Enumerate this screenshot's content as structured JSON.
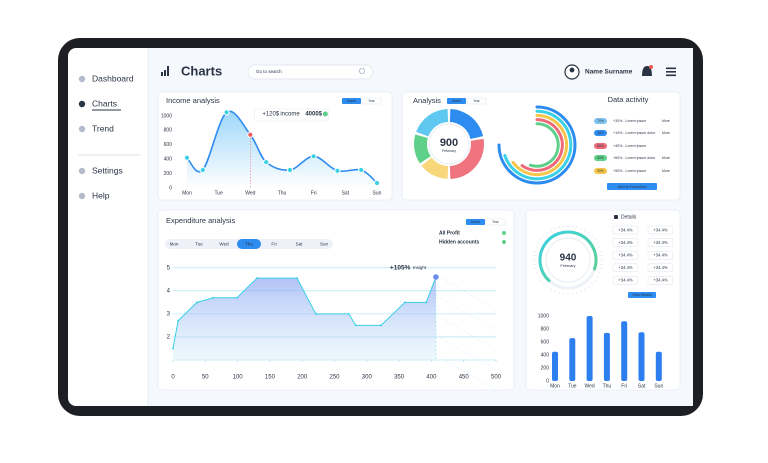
{
  "sidebar": {
    "items": [
      "Dashboard",
      "Charts",
      "Trend",
      "Settings",
      "Help"
    ],
    "active": 1
  },
  "header": {
    "title": "Charts",
    "search_placeholder": "Go to search",
    "user": "Name Surname"
  },
  "toggle": [
    "Month",
    "Year"
  ],
  "chart_data": [
    {
      "type": "line",
      "title": "Income analysis",
      "color": "#2d8cf0",
      "highlight_color": "#ef5a5a",
      "x": [
        0,
        0.5,
        1.25,
        2,
        2.5,
        3.25,
        4,
        4.75,
        5.5,
        6
      ],
      "values": [
        420,
        250,
        1050,
        740,
        360,
        250,
        440,
        240,
        250,
        70
      ],
      "highlight_index": 3,
      "annotation": [
        "+120$",
        "income",
        "4000$"
      ],
      "xlim": [
        -0.2,
        6.2
      ],
      "xticks": [
        {
          "value": 0,
          "label": "Mon"
        },
        {
          "value": 1,
          "label": "Tue"
        },
        {
          "value": 2,
          "label": "Wed"
        },
        {
          "value": 3,
          "label": "Thu"
        },
        {
          "value": 4,
          "label": "Fri"
        },
        {
          "value": 5,
          "label": "Sat"
        },
        {
          "value": 6,
          "label": "Sun"
        }
      ],
      "ylim": [
        0,
        1000
      ],
      "yticks": [
        0,
        200,
        400,
        600,
        800,
        1000
      ]
    },
    {
      "type": "donut",
      "title": "Analysis",
      "center_value": 900,
      "center_label": "February",
      "values": [
        22,
        28,
        15,
        15,
        20
      ],
      "colors": [
        "#2d8cf0",
        "#ef7480",
        "#f7d77a",
        "#5fd08a",
        "#5ec8f0"
      ]
    },
    {
      "type": "radial_bar",
      "values": [
        75,
        70,
        65,
        60,
        55
      ],
      "max": 100,
      "colors": [
        "#2d8cf0",
        "#3ad1e6",
        "#f5c54a",
        "#ef6a78",
        "#5fd08a"
      ]
    },
    {
      "type": "area",
      "title": "Expenditure analysis",
      "color": "#6d8ef0",
      "x": [
        0,
        8,
        37,
        62,
        99,
        130,
        192,
        221,
        272,
        283,
        322,
        359,
        392,
        407
      ],
      "values": [
        1.5,
        2.7,
        3.5,
        3.7,
        3.7,
        4.55,
        4.55,
        3.0,
        3.0,
        2.5,
        2.5,
        3.5,
        3.5,
        4.6
      ],
      "xlim": [
        0,
        500
      ],
      "xticks": [
        0,
        50,
        100,
        150,
        200,
        250,
        300,
        350,
        400,
        450,
        500
      ],
      "ylim": [
        1,
        5.25
      ],
      "yticks": [
        2,
        3,
        4,
        5
      ],
      "grid": true,
      "days": [
        "Mon",
        "Tue",
        "Wed",
        "Thu",
        "Fri",
        "Sat",
        "Sun"
      ],
      "active_day": 3,
      "legend": [
        "All Profit",
        "Hidden accounts"
      ],
      "annotation": "+105%",
      "annotation_sub": "Insight"
    },
    {
      "type": "bar",
      "color": "#2d7ff0",
      "categories": [
        "Mon",
        "Tue",
        "Wed",
        "Thu",
        "Fri",
        "Sat",
        "Sun"
      ],
      "values": [
        450,
        660,
        1000,
        740,
        920,
        750,
        450
      ],
      "ylim": [
        0,
        1000
      ],
      "yticks": [
        0,
        200,
        400,
        600,
        800,
        1000
      ]
    }
  ],
  "data_activity": {
    "title": "Data activity",
    "button": "Add to Favorites",
    "rows": [
      {
        "badge": "70%",
        "text": "+30% - Lorem ipsum",
        "color": "#7fc4f0",
        "more": "More"
      },
      {
        "badge": "40%",
        "text": "+10% - Lorem ipsum dolor",
        "color": "#2d8cf0",
        "more": "More"
      },
      {
        "badge": "80%",
        "text": "+40% - Lorem ipsum",
        "color": "#ef6a78",
        "more": null
      },
      {
        "badge": "60%",
        "text": "+60% - Lorem ipsum dolor",
        "color": "#5fd08a",
        "more": "More"
      },
      {
        "badge": "50%",
        "text": "+50% - Lorem ipsum",
        "color": "#f5c54a",
        "more": "More"
      }
    ]
  },
  "details": {
    "title": "Details",
    "gauge_value": 940,
    "gauge_label": "February",
    "button": "View Details",
    "badges": [
      {
        "text": "+34.4%",
        "color": "#2d7ff0"
      },
      {
        "text": "+34.4%",
        "color": "#2d7ff0"
      },
      {
        "text": "+34.4%",
        "color": "#3a4660"
      },
      {
        "text": "+34.4%",
        "color": "#3a4660"
      },
      {
        "text": "+34.4%",
        "color": "#ef5a5a"
      },
      {
        "text": "+34.4%",
        "color": "#ef5a5a"
      },
      {
        "text": "+34.4%",
        "color": "#2d7ff0"
      },
      {
        "text": "+34.4%",
        "color": "#2d7ff0"
      },
      {
        "text": "+34.4%",
        "color": "#ef5a5a"
      },
      {
        "text": "+34.4%",
        "color": "#ef5a5a"
      }
    ]
  }
}
